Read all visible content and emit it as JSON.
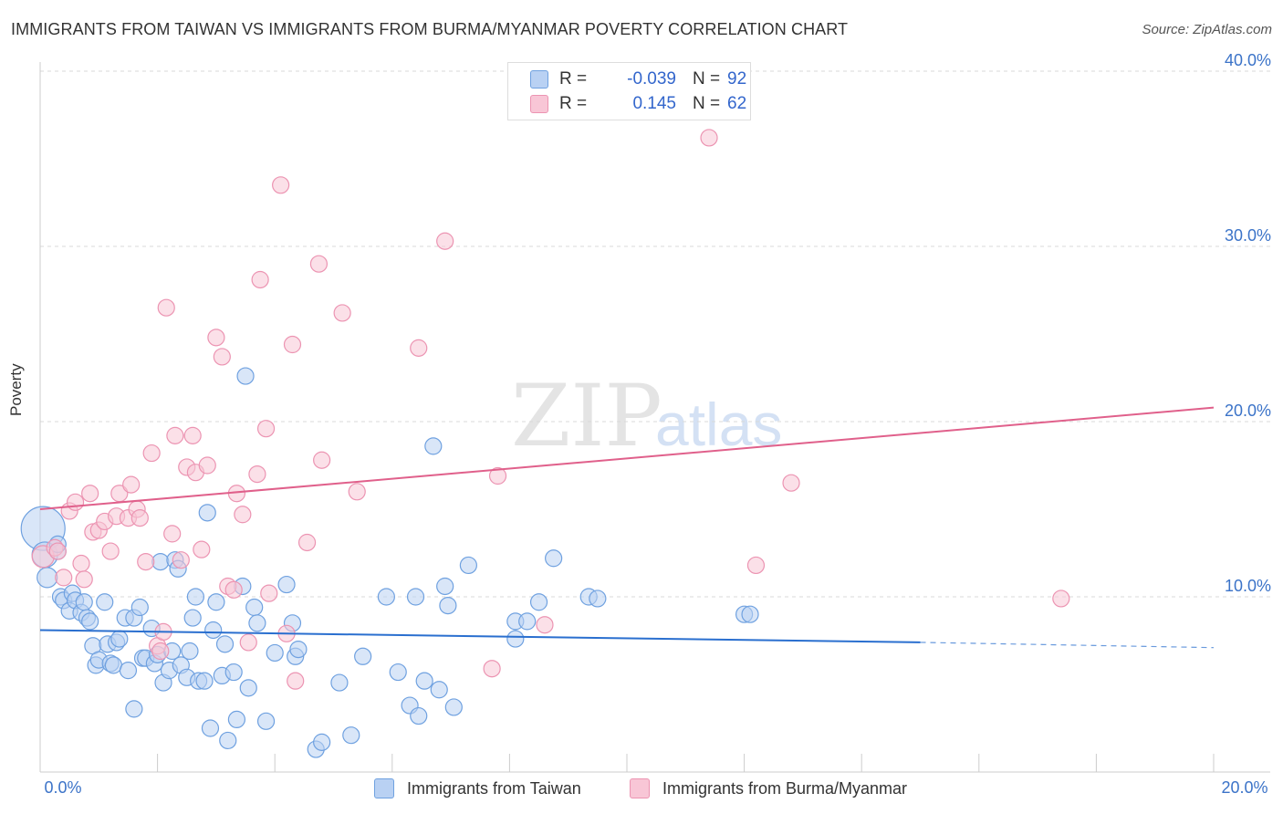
{
  "title": "IMMIGRANTS FROM TAIWAN VS IMMIGRANTS FROM BURMA/MYANMAR POVERTY CORRELATION CHART",
  "source": "Source: ZipAtlas.com",
  "watermark": {
    "zip": "ZIP",
    "atlas": "atlas"
  },
  "colors": {
    "taiwan_fill": "#b9d1f3",
    "taiwan_stroke": "#6fa1e0",
    "taiwan_line": "#2a6fcf",
    "burma_fill": "#f8c6d6",
    "burma_stroke": "#ec94b2",
    "burma_line": "#e0608b",
    "tick_label": "#3b73c8",
    "grid": "#d9d9d9"
  },
  "stats": [
    {
      "r_label": "R = ",
      "r_value": "-0.039",
      "n_label": "N = ",
      "n_value": "92"
    },
    {
      "r_label": "R = ",
      "r_value": "0.145",
      "n_label": "N = ",
      "n_value": "62"
    }
  ],
  "legend": [
    {
      "label": "Immigrants from Taiwan"
    },
    {
      "label": "Immigrants from Burma/Myanmar"
    }
  ],
  "chart_data": {
    "type": "scatter",
    "title": "IMMIGRANTS FROM TAIWAN VS IMMIGRANTS FROM BURMA/MYANMAR POVERTY CORRELATION CHART",
    "xlabel": "",
    "ylabel": "Poverty",
    "xlim": [
      0,
      20
    ],
    "ylim": [
      0,
      40
    ],
    "x_tick_labels": [
      "0.0%",
      "20.0%"
    ],
    "y_ticks": [
      10,
      20,
      30,
      40
    ],
    "y_tick_labels": [
      "10.0%",
      "20.0%",
      "30.0%",
      "40.0%"
    ],
    "grid": true,
    "legend_position": "bottom",
    "series": [
      {
        "name": "Immigrants from Taiwan",
        "r": -0.039,
        "n": 92,
        "trend": {
          "x": [
            0,
            15
          ],
          "y": [
            8.1,
            7.4
          ],
          "dashed_x": [
            15,
            20
          ],
          "dashed_y": [
            7.4,
            7.1
          ]
        },
        "points": [
          [
            0.05,
            13.9,
            24
          ],
          [
            0.08,
            12.4,
            14
          ],
          [
            0.12,
            11.1,
            11
          ],
          [
            0.3,
            12.6,
            9
          ],
          [
            0.3,
            13.0,
            9
          ],
          [
            0.35,
            10.0,
            9
          ],
          [
            0.4,
            9.8,
            9
          ],
          [
            0.5,
            9.2,
            9
          ],
          [
            0.55,
            10.2,
            9
          ],
          [
            0.6,
            9.8,
            9
          ],
          [
            0.7,
            9.1,
            9
          ],
          [
            0.75,
            9.7,
            9
          ],
          [
            0.8,
            8.8,
            9
          ],
          [
            0.85,
            8.6,
            9
          ],
          [
            0.9,
            7.2,
            9
          ],
          [
            0.95,
            6.1,
            9
          ],
          [
            1.0,
            6.4,
            9
          ],
          [
            1.1,
            9.7,
            9
          ],
          [
            1.15,
            7.3,
            9
          ],
          [
            1.2,
            6.2,
            9
          ],
          [
            1.25,
            6.1,
            9
          ],
          [
            1.3,
            7.4,
            9
          ],
          [
            1.35,
            7.6,
            9
          ],
          [
            1.45,
            8.8,
            9
          ],
          [
            1.5,
            5.8,
            9
          ],
          [
            1.6,
            8.8,
            9
          ],
          [
            1.6,
            3.6,
            9
          ],
          [
            1.7,
            9.4,
            9
          ],
          [
            1.75,
            6.5,
            9
          ],
          [
            1.8,
            6.5,
            9
          ],
          [
            1.9,
            8.2,
            9
          ],
          [
            1.95,
            6.2,
            9
          ],
          [
            2.0,
            6.7,
            9
          ],
          [
            2.05,
            12.0,
            9
          ],
          [
            2.1,
            5.1,
            9
          ],
          [
            2.2,
            5.8,
            9
          ],
          [
            2.25,
            6.9,
            9
          ],
          [
            2.3,
            12.1,
            9
          ],
          [
            2.35,
            11.6,
            9
          ],
          [
            2.4,
            6.1,
            9
          ],
          [
            2.5,
            5.4,
            9
          ],
          [
            2.55,
            6.9,
            9
          ],
          [
            2.6,
            8.8,
            9
          ],
          [
            2.65,
            10.0,
            9
          ],
          [
            2.7,
            5.2,
            9
          ],
          [
            2.8,
            5.2,
            9
          ],
          [
            2.85,
            14.8,
            9
          ],
          [
            2.9,
            2.5,
            9
          ],
          [
            2.95,
            8.1,
            9
          ],
          [
            3.0,
            9.7,
            9
          ],
          [
            3.1,
            5.5,
            9
          ],
          [
            3.15,
            7.3,
            9
          ],
          [
            3.2,
            1.8,
            9
          ],
          [
            3.3,
            5.7,
            9
          ],
          [
            3.35,
            3.0,
            9
          ],
          [
            3.45,
            10.6,
            9
          ],
          [
            3.5,
            22.6,
            9
          ],
          [
            3.55,
            4.8,
            9
          ],
          [
            3.65,
            9.4,
            9
          ],
          [
            3.7,
            8.5,
            9
          ],
          [
            3.85,
            2.9,
            9
          ],
          [
            4.0,
            6.8,
            9
          ],
          [
            4.2,
            10.7,
            9
          ],
          [
            4.3,
            8.5,
            9
          ],
          [
            4.35,
            6.6,
            9
          ],
          [
            4.4,
            7.0,
            9
          ],
          [
            4.7,
            1.3,
            9
          ],
          [
            4.8,
            1.7,
            9
          ],
          [
            5.1,
            5.1,
            9
          ],
          [
            5.3,
            2.1,
            9
          ],
          [
            5.5,
            6.6,
            9
          ],
          [
            5.9,
            10.0,
            9
          ],
          [
            6.1,
            5.7,
            9
          ],
          [
            6.3,
            3.8,
            9
          ],
          [
            6.4,
            10.0,
            9
          ],
          [
            6.45,
            3.2,
            9
          ],
          [
            6.55,
            5.2,
            9
          ],
          [
            6.7,
            18.6,
            9
          ],
          [
            6.8,
            4.7,
            9
          ],
          [
            6.9,
            10.6,
            9
          ],
          [
            6.95,
            9.5,
            9
          ],
          [
            7.05,
            3.7,
            9
          ],
          [
            7.3,
            11.8,
            9
          ],
          [
            8.1,
            8.6,
            9
          ],
          [
            8.1,
            7.6,
            9
          ],
          [
            8.3,
            8.6,
            9
          ],
          [
            8.5,
            9.7,
            9
          ],
          [
            8.75,
            12.2,
            9
          ],
          [
            9.35,
            10.0,
            9
          ],
          [
            9.5,
            9.9,
            9
          ],
          [
            12.0,
            9.0,
            9
          ],
          [
            12.1,
            9.0,
            9
          ]
        ]
      },
      {
        "name": "Immigrants from Burma/Myanmar",
        "r": 0.145,
        "n": 62,
        "trend": {
          "x": [
            0,
            20
          ],
          "y": [
            15.0,
            20.8
          ]
        },
        "points": [
          [
            0.05,
            12.3,
            12
          ],
          [
            0.25,
            12.8,
            9
          ],
          [
            0.3,
            12.6,
            9
          ],
          [
            0.4,
            11.1,
            9
          ],
          [
            0.5,
            14.9,
            9
          ],
          [
            0.6,
            15.4,
            9
          ],
          [
            0.7,
            11.9,
            9
          ],
          [
            0.75,
            11.0,
            9
          ],
          [
            0.85,
            15.9,
            9
          ],
          [
            0.9,
            13.7,
            9
          ],
          [
            1.0,
            13.8,
            9
          ],
          [
            1.1,
            14.3,
            9
          ],
          [
            1.2,
            12.6,
            9
          ],
          [
            1.3,
            14.6,
            9
          ],
          [
            1.35,
            15.9,
            9
          ],
          [
            1.5,
            14.5,
            9
          ],
          [
            1.55,
            16.4,
            9
          ],
          [
            1.65,
            15.0,
            9
          ],
          [
            1.7,
            14.5,
            9
          ],
          [
            1.8,
            12.0,
            9
          ],
          [
            1.9,
            18.2,
            9
          ],
          [
            2.0,
            7.2,
            9
          ],
          [
            2.05,
            6.9,
            9
          ],
          [
            2.1,
            8.0,
            9
          ],
          [
            2.15,
            26.5,
            9
          ],
          [
            2.25,
            13.6,
            9
          ],
          [
            2.3,
            19.2,
            9
          ],
          [
            2.4,
            12.1,
            9
          ],
          [
            2.5,
            17.4,
            9
          ],
          [
            2.6,
            19.2,
            9
          ],
          [
            2.65,
            17.1,
            9
          ],
          [
            2.75,
            12.7,
            9
          ],
          [
            2.85,
            17.5,
            9
          ],
          [
            3.0,
            24.8,
            9
          ],
          [
            3.1,
            23.7,
            9
          ],
          [
            3.2,
            10.6,
            9
          ],
          [
            3.3,
            10.4,
            9
          ],
          [
            3.35,
            15.9,
            9
          ],
          [
            3.45,
            14.7,
            9
          ],
          [
            3.55,
            7.4,
            9
          ],
          [
            3.7,
            17.0,
            9
          ],
          [
            3.75,
            28.1,
            9
          ],
          [
            3.85,
            19.6,
            9
          ],
          [
            3.9,
            10.2,
            9
          ],
          [
            4.1,
            33.5,
            9
          ],
          [
            4.2,
            7.9,
            9
          ],
          [
            4.3,
            24.4,
            9
          ],
          [
            4.35,
            5.2,
            9
          ],
          [
            4.55,
            13.1,
            9
          ],
          [
            4.75,
            29.0,
            9
          ],
          [
            4.8,
            17.8,
            9
          ],
          [
            5.15,
            26.2,
            9
          ],
          [
            5.4,
            16.0,
            9
          ],
          [
            6.45,
            24.2,
            9
          ],
          [
            6.9,
            30.3,
            9
          ],
          [
            7.7,
            5.9,
            9
          ],
          [
            7.8,
            16.9,
            9
          ],
          [
            8.6,
            8.4,
            9
          ],
          [
            11.4,
            36.2,
            9
          ],
          [
            12.2,
            11.8,
            9
          ],
          [
            12.8,
            16.5,
            9
          ],
          [
            17.4,
            9.9,
            9
          ]
        ]
      }
    ]
  }
}
